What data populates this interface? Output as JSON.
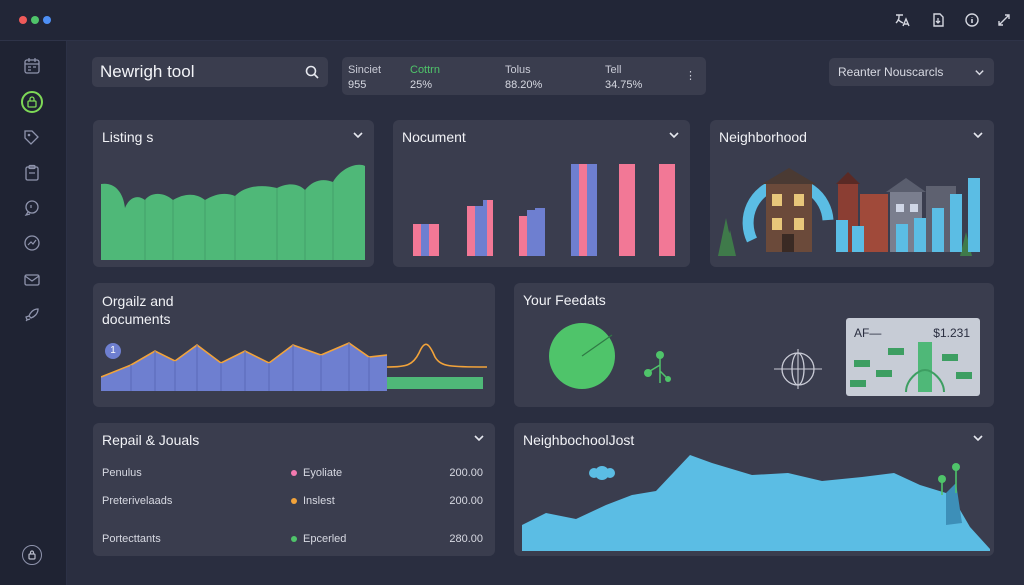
{
  "window": {
    "dots": [
      "#ef5a5a",
      "#4fc46a",
      "#4e8ff5"
    ]
  },
  "top_icons": [
    "translate-icon",
    "export-icon",
    "info-icon",
    "expand-icon"
  ],
  "sidebar": {
    "icons": [
      "calendar-icon",
      "lock-icon",
      "tag-icon",
      "clipboard-icon",
      "chat-icon",
      "chart-icon",
      "mail-icon",
      "rocket-icon",
      "user-icon"
    ],
    "active_index": 1
  },
  "search": {
    "value": "Newrigh tool"
  },
  "stats": [
    {
      "label": "Sinciet",
      "value": "955",
      "color": "#c9cbd6"
    },
    {
      "label": "Cottrn",
      "value": "25%",
      "color": "#4fc46a"
    },
    {
      "label": "Tolus",
      "value": "88.20%",
      "color": "#c9cbd6"
    },
    {
      "label": "Tell",
      "value": "34.75%",
      "color": "#c9cbd6"
    }
  ],
  "dropdown": {
    "value": "Reanter Nouscarcls"
  },
  "panels": {
    "listings": {
      "title": "Listing s"
    },
    "nocument": {
      "title": "Nocument"
    },
    "neighborhood": {
      "title": "Neighborhood"
    },
    "organize": {
      "title_line1": "Orgailz and",
      "title_line2": "documents",
      "badge": "1"
    },
    "feedats": {
      "title": "Your Feedats",
      "card_label": "AF—",
      "card_value": "$1.231"
    },
    "repail": {
      "title": "Repail & Jouals",
      "rows": [
        {
          "name": "Penulus",
          "tag": "Eyoliate",
          "value": "200.00",
          "color": "#f47ab0"
        },
        {
          "name": "Preterivelaads",
          "tag": "Inslest",
          "value": "200.00",
          "color": "#f2a33a"
        },
        {
          "name": "Portecttants",
          "tag": "Epcerled",
          "value": "280.00",
          "color": "#4fc46a"
        }
      ]
    },
    "neighjost": {
      "title": "NeighbochoolJost"
    }
  },
  "colors": {
    "green": "#4fb878",
    "blue": "#6e7fd0",
    "pink": "#f27896",
    "cyan": "#5bbde4",
    "orange": "#f2a33a"
  }
}
